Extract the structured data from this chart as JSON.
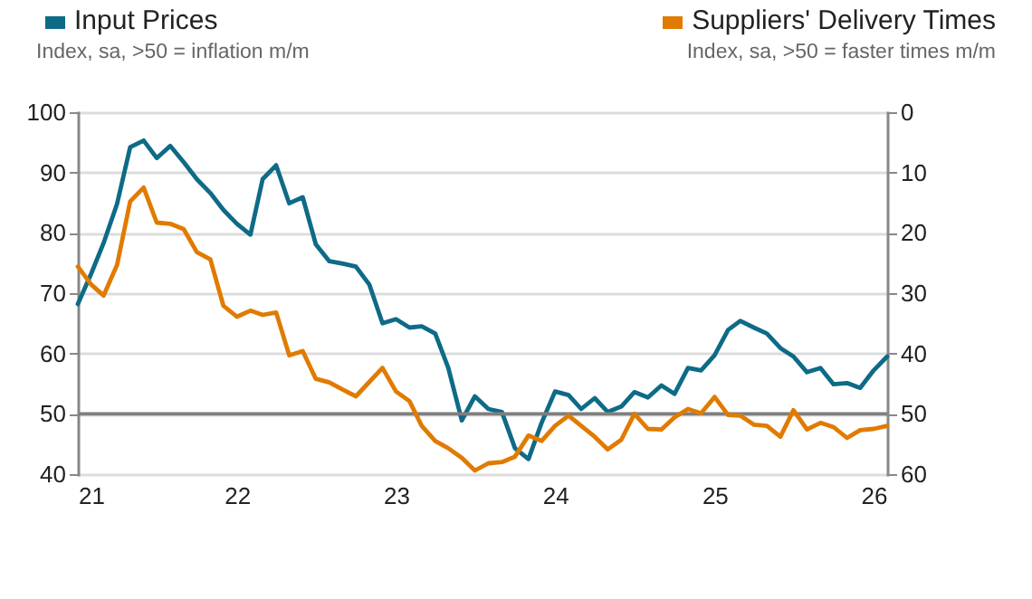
{
  "chart_data": {
    "type": "line",
    "ylabel": "Index, sa, >50 = inflation m/m",
    "y2label": "Index, sa, >50 = faster times m/m",
    "x": [
      "2021-01",
      "2021-02",
      "2021-03",
      "2021-04",
      "2021-05",
      "2021-06",
      "2021-07",
      "2021-08",
      "2021-09",
      "2021-10",
      "2021-11",
      "2021-12",
      "2022-01",
      "2022-02",
      "2022-03",
      "2022-04",
      "2022-05",
      "2022-06",
      "2022-07",
      "2022-08",
      "2022-09",
      "2022-10",
      "2022-11",
      "2022-12",
      "2023-01",
      "2023-02",
      "2023-03",
      "2023-04",
      "2023-05",
      "2023-06",
      "2023-07",
      "2023-08",
      "2023-09",
      "2023-10",
      "2023-11",
      "2023-12",
      "2024-01",
      "2024-02",
      "2024-03",
      "2024-04",
      "2024-05",
      "2024-06",
      "2024-07",
      "2024-08",
      "2024-09",
      "2024-10",
      "2024-11",
      "2024-12",
      "2025-01",
      "2025-02",
      "2025-03",
      "2025-04",
      "2025-05",
      "2025-06",
      "2025-07",
      "2025-08",
      "2025-09",
      "2025-10",
      "2025-11",
      "2025-12",
      "2026-01",
      "2026-02"
    ],
    "series": [
      {
        "name": "Input Prices",
        "color": "#0e6b87",
        "values": [
          68.2,
          73.3,
          78.3,
          84.8,
          94.2,
          95.3,
          92.4,
          94.4,
          91.7,
          88.9,
          86.6,
          83.8,
          81.5,
          79.7,
          88.9,
          91.2,
          84.9,
          85.9,
          78.1,
          75.3,
          74.9,
          74.4,
          71.4,
          65.0,
          65.7,
          64.3,
          64.5,
          63.3,
          57.6,
          48.9,
          52.9,
          50.8,
          50.3,
          44.3,
          42.5,
          48.5,
          53.7,
          53.1,
          50.8,
          52.6,
          50.3,
          51.2,
          53.6,
          52.7,
          54.7,
          53.3,
          57.6,
          57.2,
          59.7,
          63.9,
          65.4,
          64.3,
          63.3,
          60.9,
          59.5,
          56.9,
          57.6,
          54.9,
          55.1,
          54.3,
          57.2,
          59.5
        ]
      },
      {
        "name": "Suppliers' Delivery Times",
        "color": "#e07b00",
        "axis": "y2",
        "values": [
          25.6,
          28.6,
          30.4,
          25.3,
          14.8,
          12.5,
          18.3,
          18.5,
          19.4,
          23.2,
          24.4,
          32.1,
          33.9,
          32.9,
          33.6,
          33.2,
          40.3,
          39.6,
          44.2,
          44.8,
          46.0,
          47.1,
          44.7,
          42.4,
          46.3,
          47.9,
          52.0,
          54.5,
          55.7,
          57.3,
          59.4,
          58.2,
          58.0,
          57.1,
          53.6,
          54.5,
          52.0,
          50.3,
          52.0,
          53.8,
          55.9,
          54.3,
          50.0,
          52.5,
          52.6,
          50.6,
          49.2,
          49.9,
          47.2,
          50.2,
          50.3,
          51.8,
          52.0,
          53.8,
          49.4,
          52.6,
          51.5,
          52.2,
          54.0,
          52.7,
          52.5,
          52.0
        ]
      }
    ],
    "xlim": [
      "2021-01",
      "2026-02"
    ],
    "xticks": [
      {
        "value": "2021-01",
        "label": "21"
      },
      {
        "value": "2022-01",
        "label": "22"
      },
      {
        "value": "2023-01",
        "label": "23"
      },
      {
        "value": "2024-01",
        "label": "24"
      },
      {
        "value": "2025-01",
        "label": "25"
      },
      {
        "value": "2026-01",
        "label": "26"
      }
    ],
    "ylim": [
      40,
      100
    ],
    "yticks": [
      40,
      50,
      60,
      70,
      80,
      90,
      100
    ],
    "y2lim": [
      60,
      0
    ],
    "y2ticks": [
      0,
      10,
      20,
      30,
      40,
      50,
      60
    ],
    "ref_lines": [
      {
        "axis": "y",
        "value": 50,
        "color": "#7f7f7f"
      }
    ],
    "grid": "y",
    "legend": "top"
  }
}
